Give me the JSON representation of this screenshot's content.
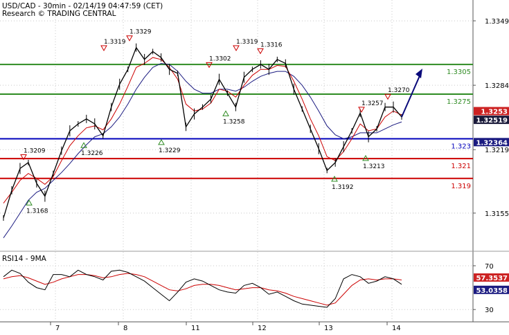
{
  "header": {
    "line1": "USD/CAD - 30min - 02/14/19 04:47:59 (CET)",
    "line2": "Research © TRADING CENTRAL"
  },
  "colors": {
    "price": "#000000",
    "ma_fast": "#cc0000",
    "ma_slow": "#1a1a80",
    "resistance": "#2e8b22",
    "pivot": "#0000bb",
    "support": "#cc0000",
    "arrow": "#0a0a7a",
    "rsi": "#000000",
    "rsi_ma": "#cc0000",
    "axis_box_dark": "#1a1a3a",
    "axis_box_red": "#cc2222",
    "axis_box_blue": "#1a1a80"
  },
  "chart_data": [
    {
      "type": "line",
      "panel": "price",
      "y_ticks": [
        "1.3349",
        "1.3284",
        "1.3219",
        "1.3155"
      ],
      "x_ticks": [
        "7",
        "8",
        "11",
        "12",
        "13",
        "14"
      ],
      "levels": [
        {
          "value": 1.3305,
          "label": "1.3305",
          "color": "#2e8b22"
        },
        {
          "value": 1.3275,
          "label": "1.3275",
          "color": "#2e8b22"
        },
        {
          "value": 1.323,
          "label": "1.323",
          "color": "#0000bb"
        },
        {
          "value": 1.321,
          "label": "1.321",
          "color": "#cc0000"
        },
        {
          "value": 1.319,
          "label": "1.319",
          "color": "#cc0000"
        }
      ],
      "axis_boxes": [
        {
          "label": "1.3253",
          "value": 1.3253,
          "style": "red"
        },
        {
          "label": "1.32519",
          "value": 1.32519,
          "style": "dark"
        },
        {
          "label": "1.32364",
          "value": 1.32364,
          "style": "blue"
        }
      ],
      "annotations": [
        {
          "label": "1.3319",
          "value": 1.3319,
          "kind": "high"
        },
        {
          "label": "1.3329",
          "value": 1.3329,
          "kind": "high"
        },
        {
          "label": "1.3302",
          "value": 1.3302,
          "kind": "high"
        },
        {
          "label": "1.3319",
          "value": 1.3319,
          "kind": "high"
        },
        {
          "label": "1.3316",
          "value": 1.3316,
          "kind": "high"
        },
        {
          "label": "1.3270",
          "value": 1.327,
          "kind": "high"
        },
        {
          "label": "1.3257",
          "value": 1.3257,
          "kind": "high"
        },
        {
          "label": "1.3209",
          "value": 1.3209,
          "kind": "high"
        },
        {
          "label": "1.3168",
          "value": 1.3168,
          "kind": "low"
        },
        {
          "label": "1.3226",
          "value": 1.3226,
          "kind": "low"
        },
        {
          "label": "1.3229",
          "value": 1.3229,
          "kind": "low"
        },
        {
          "label": "1.3258",
          "value": 1.3258,
          "kind": "low"
        },
        {
          "label": "1.3192",
          "value": 1.3192,
          "kind": "low"
        },
        {
          "label": "1.3213",
          "value": 1.3213,
          "kind": "low"
        }
      ],
      "series": [
        {
          "name": "price",
          "values": [
            1.315,
            1.3178,
            1.32,
            1.3206,
            1.3185,
            1.3172,
            1.3195,
            1.3218,
            1.3238,
            1.3245,
            1.325,
            1.3245,
            1.3233,
            1.3262,
            1.3285,
            1.33,
            1.3322,
            1.331,
            1.3318,
            1.3312,
            1.33,
            1.3296,
            1.3242,
            1.3255,
            1.3262,
            1.327,
            1.329,
            1.3276,
            1.3262,
            1.3292,
            1.33,
            1.3305,
            1.33,
            1.331,
            1.3306,
            1.328,
            1.326,
            1.324,
            1.322,
            1.3198,
            1.3206,
            1.3222,
            1.3238,
            1.3256,
            1.3232,
            1.324,
            1.3262,
            1.3262,
            1.3252
          ]
        },
        {
          "name": "ma_fast",
          "values": [
            1.3165,
            1.3176,
            1.3188,
            1.3195,
            1.319,
            1.3184,
            1.3192,
            1.3208,
            1.3223,
            1.3233,
            1.3241,
            1.3243,
            1.3239,
            1.325,
            1.3265,
            1.3283,
            1.3302,
            1.3306,
            1.3312,
            1.331,
            1.3302,
            1.329,
            1.3265,
            1.3258,
            1.326,
            1.3266,
            1.328,
            1.3278,
            1.3272,
            1.3284,
            1.3294,
            1.33,
            1.33,
            1.3304,
            1.3303,
            1.3288,
            1.327,
            1.325,
            1.3233,
            1.3212,
            1.3208,
            1.3217,
            1.323,
            1.3245,
            1.3238,
            1.324,
            1.3252,
            1.3258,
            1.3254
          ]
        },
        {
          "name": "ma_slow",
          "values": [
            1.313,
            1.3142,
            1.3155,
            1.3168,
            1.3176,
            1.318,
            1.3188,
            1.3196,
            1.3205,
            1.3215,
            1.3224,
            1.3232,
            1.3235,
            1.3242,
            1.3252,
            1.3265,
            1.328,
            1.3292,
            1.3302,
            1.3306,
            1.3305,
            1.3298,
            1.3288,
            1.328,
            1.3276,
            1.3276,
            1.328,
            1.328,
            1.3278,
            1.3282,
            1.3288,
            1.3293,
            1.3296,
            1.3298,
            1.3298,
            1.3293,
            1.3284,
            1.3272,
            1.3258,
            1.3243,
            1.3234,
            1.323,
            1.3232,
            1.3236,
            1.3236,
            1.3236,
            1.324,
            1.3244,
            1.3247
          ]
        }
      ],
      "forecast": {
        "from": 1.3252,
        "to": 1.3305
      }
    },
    {
      "type": "line",
      "panel": "rsi",
      "title": "RSI14 - 9MA",
      "y_ticks": [
        "70",
        "30"
      ],
      "axis_boxes": [
        {
          "label": "57.3537",
          "value": 57.3537,
          "style": "red"
        },
        {
          "label": "53.0358",
          "value": 53.0358,
          "style": "blue"
        }
      ],
      "series": [
        {
          "name": "RSI",
          "values": [
            60,
            66,
            63,
            55,
            50,
            48,
            62,
            62,
            60,
            66,
            62,
            60,
            57,
            65,
            66,
            64,
            60,
            56,
            50,
            44,
            38,
            46,
            55,
            58,
            56,
            52,
            48,
            46,
            45,
            52,
            54,
            50,
            44,
            46,
            42,
            38,
            35,
            34,
            33,
            32,
            40,
            58,
            62,
            60,
            54,
            56,
            60,
            58,
            53
          ]
        },
        {
          "name": "RSI MA",
          "values": [
            58,
            60,
            61,
            59,
            56,
            53,
            55,
            58,
            60,
            62,
            62,
            61,
            59,
            60,
            62,
            63,
            62,
            60,
            56,
            52,
            48,
            47,
            49,
            52,
            53,
            53,
            52,
            50,
            48,
            49,
            50,
            50,
            48,
            47,
            45,
            42,
            40,
            38,
            36,
            34,
            36,
            44,
            52,
            57,
            58,
            57,
            58,
            58,
            57
          ]
        }
      ]
    }
  ]
}
